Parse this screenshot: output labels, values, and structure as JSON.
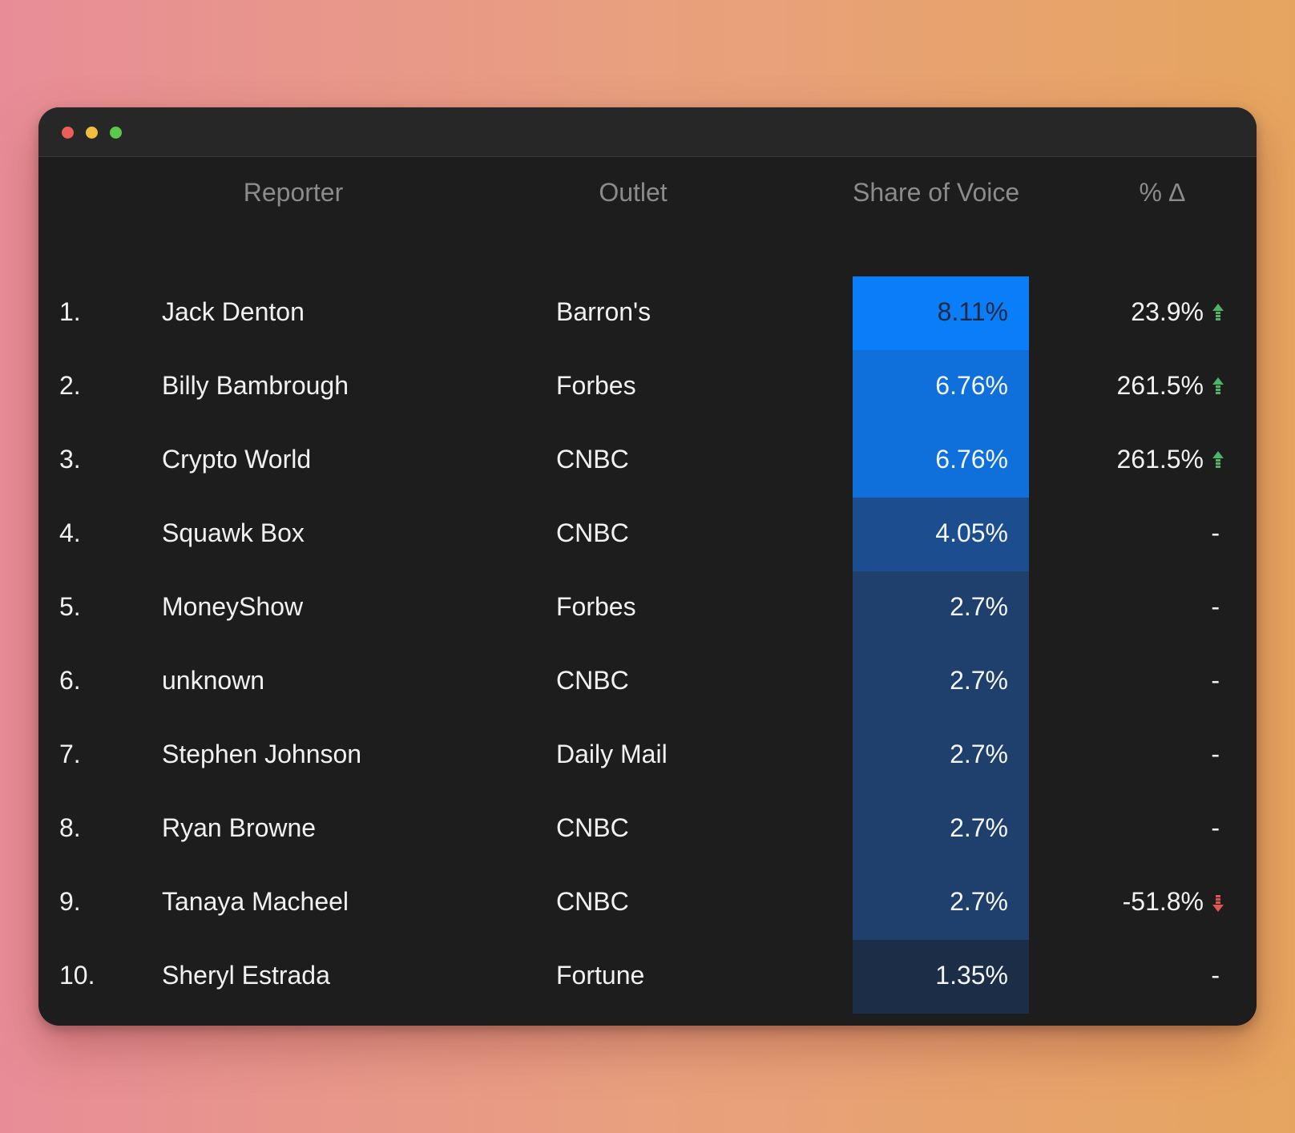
{
  "window": {
    "controls": [
      {
        "name": "close",
        "color": "#ec5f57"
      },
      {
        "name": "minimize",
        "color": "#f2bc3f"
      },
      {
        "name": "zoom",
        "color": "#5ac84a"
      }
    ]
  },
  "table": {
    "headers": {
      "reporter": "Reporter",
      "outlet": "Outlet",
      "share_of_voice": "Share of Voice",
      "delta": "% ∆"
    },
    "rows": [
      {
        "rank": "1.",
        "reporter": "Jack Denton",
        "outlet": "Barron's",
        "share_of_voice": "8.11%",
        "change": "23.9%",
        "trend": "up",
        "cell_color": "#0a7ef8",
        "text_color": "#1d2a44"
      },
      {
        "rank": "2.",
        "reporter": "Billy Bambrough",
        "outlet": "Forbes",
        "share_of_voice": "6.76%",
        "change": "261.5%",
        "trend": "up",
        "cell_color": "#0f6fdb",
        "text_color": "#f3f6fb"
      },
      {
        "rank": "3.",
        "reporter": "Crypto World",
        "outlet": "CNBC",
        "share_of_voice": "6.76%",
        "change": "261.5%",
        "trend": "up",
        "cell_color": "#0f6fdb",
        "text_color": "#f3f6fb"
      },
      {
        "rank": "4.",
        "reporter": "Squawk Box",
        "outlet": "CNBC",
        "share_of_voice": "4.05%",
        "change": "-",
        "trend": "none",
        "cell_color": "#1b4d8f",
        "text_color": "#f3f6fb"
      },
      {
        "rank": "5.",
        "reporter": "MoneyShow",
        "outlet": "Forbes",
        "share_of_voice": "2.7%",
        "change": "-",
        "trend": "none",
        "cell_color": "#1f3f6c",
        "text_color": "#f3f6fb"
      },
      {
        "rank": "6.",
        "reporter": "unknown",
        "outlet": "CNBC",
        "share_of_voice": "2.7%",
        "change": "-",
        "trend": "none",
        "cell_color": "#1f3f6c",
        "text_color": "#f3f6fb"
      },
      {
        "rank": "7.",
        "reporter": "Stephen Johnson",
        "outlet": "Daily Mail",
        "share_of_voice": "2.7%",
        "change": "-",
        "trend": "none",
        "cell_color": "#1f3f6c",
        "text_color": "#f3f6fb"
      },
      {
        "rank": "8.",
        "reporter": "Ryan Browne",
        "outlet": "CNBC",
        "share_of_voice": "2.7%",
        "change": "-",
        "trend": "none",
        "cell_color": "#1f3f6c",
        "text_color": "#f3f6fb"
      },
      {
        "rank": "9.",
        "reporter": "Tanaya Macheel",
        "outlet": "CNBC",
        "share_of_voice": "2.7%",
        "change": "-51.8%",
        "trend": "down",
        "cell_color": "#1f3f6c",
        "text_color": "#f3f6fb"
      },
      {
        "rank": "10.",
        "reporter": "Sheryl Estrada",
        "outlet": "Fortune",
        "share_of_voice": "1.35%",
        "change": "-",
        "trend": "none",
        "cell_color": "#1c2d47",
        "text_color": "#f3f6fb"
      }
    ]
  },
  "colors": {
    "background": "#1d1d1d",
    "titlebar": "#272727",
    "header_text": "#8b8b8b",
    "body_text": "#f1f1f1",
    "trend_up": "#4fb564",
    "trend_down": "#e2544f"
  }
}
